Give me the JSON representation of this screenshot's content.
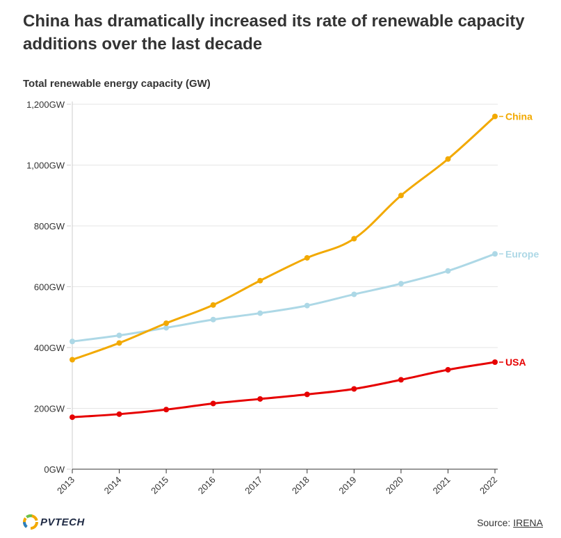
{
  "title": "China has dramatically increased its rate of renewable capacity additions over the last decade",
  "footer": {
    "logo_text": "PVTECH",
    "source_prefix": "Source:",
    "source_link": "IRENA"
  },
  "colors": {
    "China": "#f2a900",
    "Europe": "#add8e6",
    "USA": "#e60000",
    "grid": "#e6e6e6",
    "axis": "#cccccc"
  },
  "chart_data": {
    "type": "line",
    "title": "",
    "ylabel": "Total renewable energy capacity (GW)",
    "xlabel": "",
    "x": [
      "2013",
      "2014",
      "2015",
      "2016",
      "2017",
      "2018",
      "2019",
      "2020",
      "2021",
      "2022"
    ],
    "ylim": [
      0,
      1200
    ],
    "yticks": [
      0,
      200,
      400,
      600,
      800,
      1000,
      1200
    ],
    "ytick_labels": [
      "0GW",
      "200GW",
      "400GW",
      "600GW",
      "800GW",
      "1,000GW",
      "1,200GW"
    ],
    "grid": true,
    "legend": "direct labels at line ends (right)",
    "series": [
      {
        "name": "China",
        "values": [
          360,
          415,
          480,
          540,
          620,
          695,
          758,
          900,
          1020,
          1160
        ]
      },
      {
        "name": "Europe",
        "values": [
          420,
          440,
          465,
          492,
          513,
          538,
          575,
          610,
          652,
          708
        ]
      },
      {
        "name": "USA",
        "values": [
          171,
          181,
          196,
          216,
          231,
          246,
          264,
          294,
          327,
          352
        ]
      }
    ]
  }
}
